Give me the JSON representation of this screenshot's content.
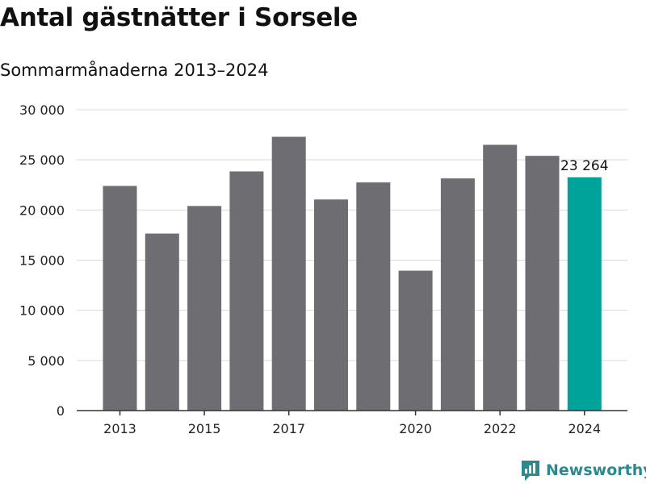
{
  "title": "Antal gästnätter i Sorsele",
  "subtitle": "Sommarmånaderna 2013–2024",
  "brand": {
    "name": "Newsworthy",
    "icon": "newsworthy-logo-icon",
    "color": "#2c8a8c"
  },
  "colors": {
    "bar": "#6e6d72",
    "highlight": "#00a39a",
    "grid": "#d9d9d9",
    "axis": "#333333"
  },
  "chart_data": {
    "type": "bar",
    "categories": [
      "2013",
      "2014",
      "2015",
      "2016",
      "2017",
      "2018",
      "2019",
      "2020",
      "2021",
      "2022",
      "2023",
      "2024"
    ],
    "values": [
      22400,
      17650,
      20400,
      23850,
      27300,
      21050,
      22750,
      13950,
      23150,
      26500,
      25400,
      23264
    ],
    "x_tick_labels": [
      "2013",
      "",
      "2015",
      "",
      "2017",
      "",
      "",
      "2020",
      "",
      "2022",
      "",
      "2024"
    ],
    "y_ticks": [
      0,
      5000,
      10000,
      15000,
      20000,
      25000,
      30000
    ],
    "y_tick_labels": [
      "0",
      "5 000",
      "10 000",
      "15 000",
      "20 000",
      "25 000",
      "30 000"
    ],
    "ylim": [
      0,
      30000
    ],
    "highlight_index": 11,
    "data_labels": [
      {
        "index": 11,
        "text": "23 264"
      }
    ],
    "grid": true,
    "xlabel": "",
    "ylabel": ""
  }
}
